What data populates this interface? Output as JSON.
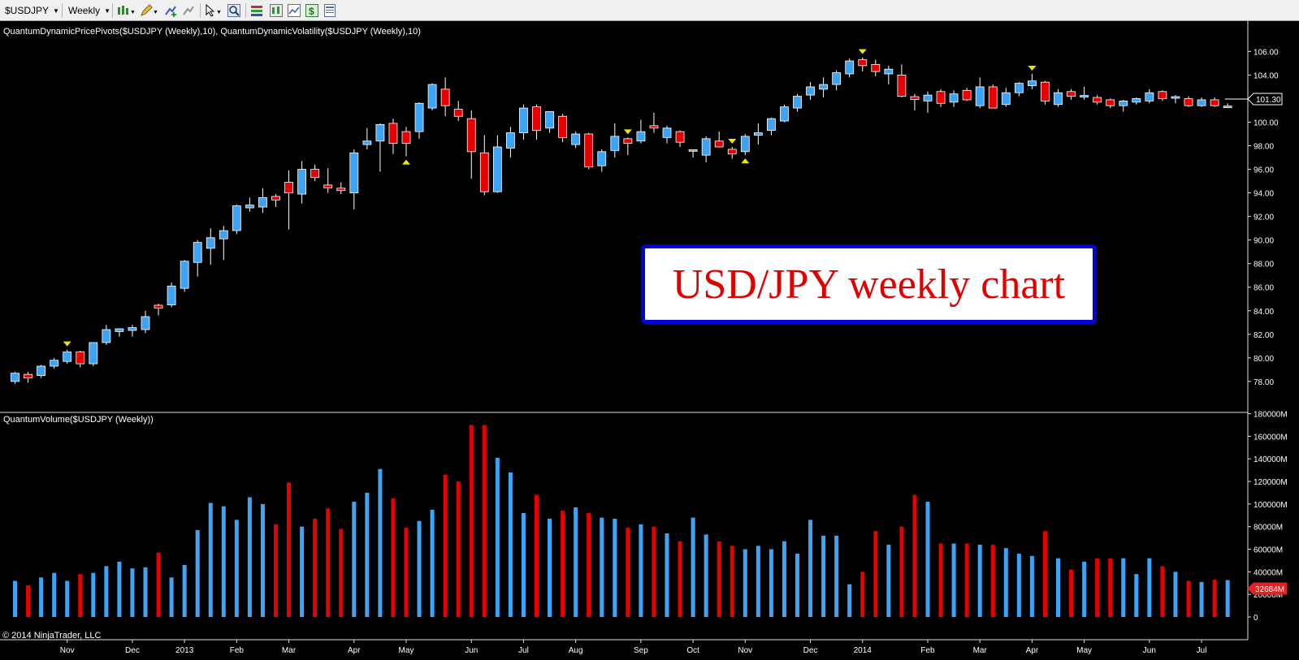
{
  "toolbar": {
    "instrument": "$USDJPY",
    "interval": "Weekly",
    "icons": [
      "bar-type-icon",
      "draw-pencil-icon",
      "add-indicator-icon",
      "remove-indicator-icon",
      "cursor-icon",
      "zoom-icon",
      "properties-icon",
      "strategy-icon",
      "chart-trader-icon",
      "money-icon",
      "data-box-icon"
    ]
  },
  "price_panel": {
    "label": "QuantumDynamicPricePivots($USDJPY (Weekly),10), QuantumDynamicVolatility($USDJPY (Weekly),10)",
    "last_price_tag": "101.30"
  },
  "volume_panel": {
    "label": "QuantumVolume($USDJPY (Weekly))",
    "last_volume_tag": "32684M"
  },
  "copyright": "© 2014 NinjaTrader, LLC",
  "overlay_title": "USD/JPY weekly chart",
  "colors": {
    "up": "#3da3f4",
    "down": "#e60000",
    "pivot": "#f2e600",
    "background": "#000000",
    "title_border": "#0000d8",
    "title_text": "#e00000"
  },
  "chart_data": [
    {
      "type": "candlestick",
      "title": "",
      "y_ticks": [
        "78.00",
        "80.00",
        "82.00",
        "84.00",
        "86.00",
        "88.00",
        "90.00",
        "92.00",
        "94.00",
        "96.00",
        "98.00",
        "100.00",
        "102.00",
        "104.00",
        "106.00"
      ],
      "ylim": [
        76.2,
        107.2
      ],
      "x_labels": [
        {
          "label": "Nov",
          "index": 4
        },
        {
          "label": "Dec",
          "index": 9
        },
        {
          "label": "2013",
          "index": 13
        },
        {
          "label": "Feb",
          "index": 17
        },
        {
          "label": "Mar",
          "index": 21
        },
        {
          "label": "Apr",
          "index": 26
        },
        {
          "label": "May",
          "index": 30
        },
        {
          "label": "Jun",
          "index": 35
        },
        {
          "label": "Jul",
          "index": 39
        },
        {
          "label": "Aug",
          "index": 43
        },
        {
          "label": "Sep",
          "index": 48
        },
        {
          "label": "Oct",
          "index": 52
        },
        {
          "label": "Nov",
          "index": 56
        },
        {
          "label": "Dec",
          "index": 61
        },
        {
          "label": "2014",
          "index": 65
        },
        {
          "label": "Feb",
          "index": 70
        },
        {
          "label": "Mar",
          "index": 74
        },
        {
          "label": "Apr",
          "index": 78
        },
        {
          "label": "May",
          "index": 82
        },
        {
          "label": "Jun",
          "index": 87
        },
        {
          "label": "Jul",
          "index": 91
        }
      ],
      "candles": [
        {
          "o": 78.0,
          "h": 78.8,
          "l": 77.8,
          "c": 78.7
        },
        {
          "o": 78.6,
          "h": 78.8,
          "l": 77.9,
          "c": 78.3
        },
        {
          "o": 78.5,
          "h": 79.4,
          "l": 78.3,
          "c": 79.3
        },
        {
          "o": 79.3,
          "h": 80.0,
          "l": 79.1,
          "c": 79.8
        },
        {
          "o": 79.7,
          "h": 80.7,
          "l": 79.5,
          "c": 80.5
        },
        {
          "o": 80.5,
          "h": 80.6,
          "l": 79.2,
          "c": 79.5
        },
        {
          "o": 79.5,
          "h": 81.3,
          "l": 79.3,
          "c": 81.3
        },
        {
          "o": 81.3,
          "h": 82.8,
          "l": 81.1,
          "c": 82.4
        },
        {
          "o": 82.3,
          "h": 82.5,
          "l": 81.8,
          "c": 82.4
        },
        {
          "o": 82.4,
          "h": 82.8,
          "l": 81.8,
          "c": 82.5
        },
        {
          "o": 82.4,
          "h": 84.0,
          "l": 82.1,
          "c": 83.5
        },
        {
          "o": 84.4,
          "h": 84.6,
          "l": 83.6,
          "c": 84.3
        },
        {
          "o": 84.5,
          "h": 86.4,
          "l": 84.3,
          "c": 86.1
        },
        {
          "o": 85.9,
          "h": 88.3,
          "l": 85.6,
          "c": 88.2
        },
        {
          "o": 88.1,
          "h": 90.0,
          "l": 86.9,
          "c": 89.8
        },
        {
          "o": 89.3,
          "h": 91.0,
          "l": 87.9,
          "c": 90.2
        },
        {
          "o": 90.1,
          "h": 91.2,
          "l": 88.3,
          "c": 90.8
        },
        {
          "o": 90.8,
          "h": 93.0,
          "l": 90.5,
          "c": 92.9
        },
        {
          "o": 92.8,
          "h": 93.6,
          "l": 92.4,
          "c": 92.9
        },
        {
          "o": 92.8,
          "h": 94.4,
          "l": 92.3,
          "c": 93.6
        },
        {
          "o": 93.7,
          "h": 93.9,
          "l": 92.8,
          "c": 93.4
        },
        {
          "o": 94.9,
          "h": 95.9,
          "l": 90.9,
          "c": 94.0
        },
        {
          "o": 93.9,
          "h": 96.7,
          "l": 93.1,
          "c": 96.0
        },
        {
          "o": 96.0,
          "h": 96.4,
          "l": 95.0,
          "c": 95.3
        },
        {
          "o": 94.6,
          "h": 96.1,
          "l": 94.0,
          "c": 94.5
        },
        {
          "o": 94.4,
          "h": 94.9,
          "l": 93.9,
          "c": 94.2
        },
        {
          "o": 94.0,
          "h": 97.7,
          "l": 92.6,
          "c": 97.4
        },
        {
          "o": 98.1,
          "h": 99.5,
          "l": 97.7,
          "c": 98.4
        },
        {
          "o": 98.4,
          "h": 99.9,
          "l": 95.8,
          "c": 99.8
        },
        {
          "o": 99.9,
          "h": 100.3,
          "l": 97.3,
          "c": 98.2
        },
        {
          "o": 99.2,
          "h": 99.6,
          "l": 97.1,
          "c": 98.2
        },
        {
          "o": 99.2,
          "h": 101.7,
          "l": 98.6,
          "c": 101.6
        },
        {
          "o": 101.2,
          "h": 103.3,
          "l": 101.0,
          "c": 103.2
        },
        {
          "o": 102.8,
          "h": 103.8,
          "l": 100.5,
          "c": 101.4
        },
        {
          "o": 101.1,
          "h": 101.8,
          "l": 100.1,
          "c": 100.5
        },
        {
          "o": 100.3,
          "h": 101.0,
          "l": 95.2,
          "c": 97.5
        },
        {
          "o": 97.4,
          "h": 98.9,
          "l": 93.8,
          "c": 94.1
        },
        {
          "o": 94.1,
          "h": 98.9,
          "l": 94.0,
          "c": 97.9
        },
        {
          "o": 97.8,
          "h": 99.6,
          "l": 97.0,
          "c": 99.1
        },
        {
          "o": 99.1,
          "h": 101.5,
          "l": 98.5,
          "c": 101.2
        },
        {
          "o": 101.3,
          "h": 101.5,
          "l": 98.5,
          "c": 99.3
        },
        {
          "o": 99.5,
          "h": 100.8,
          "l": 99.1,
          "c": 100.9
        },
        {
          "o": 100.5,
          "h": 100.7,
          "l": 98.3,
          "c": 98.7
        },
        {
          "o": 98.1,
          "h": 99.2,
          "l": 97.8,
          "c": 99.0
        },
        {
          "o": 99.0,
          "h": 99.1,
          "l": 96.0,
          "c": 96.2
        },
        {
          "o": 96.3,
          "h": 97.7,
          "l": 95.8,
          "c": 97.5
        },
        {
          "o": 97.6,
          "h": 99.9,
          "l": 97.0,
          "c": 98.8
        },
        {
          "o": 98.6,
          "h": 98.7,
          "l": 97.2,
          "c": 98.2
        },
        {
          "o": 98.4,
          "h": 100.2,
          "l": 98.2,
          "c": 99.2
        },
        {
          "o": 99.7,
          "h": 100.8,
          "l": 99.1,
          "c": 99.5
        },
        {
          "o": 98.7,
          "h": 99.7,
          "l": 98.2,
          "c": 99.5
        },
        {
          "o": 99.2,
          "h": 99.3,
          "l": 97.9,
          "c": 98.3
        },
        {
          "o": 97.6,
          "h": 97.7,
          "l": 97.0,
          "c": 97.6
        },
        {
          "o": 97.2,
          "h": 98.8,
          "l": 96.6,
          "c": 98.6
        },
        {
          "o": 98.4,
          "h": 99.2,
          "l": 97.9,
          "c": 97.9
        },
        {
          "o": 97.7,
          "h": 97.9,
          "l": 96.9,
          "c": 97.3
        },
        {
          "o": 97.5,
          "h": 99.0,
          "l": 97.2,
          "c": 98.8
        },
        {
          "o": 98.9,
          "h": 99.9,
          "l": 98.1,
          "c": 99.1
        },
        {
          "o": 99.3,
          "h": 100.4,
          "l": 98.9,
          "c": 100.3
        },
        {
          "o": 100.1,
          "h": 101.5,
          "l": 100.0,
          "c": 101.3
        },
        {
          "o": 101.2,
          "h": 102.4,
          "l": 100.9,
          "c": 102.2
        },
        {
          "o": 102.3,
          "h": 103.4,
          "l": 101.9,
          "c": 103.0
        },
        {
          "o": 102.8,
          "h": 103.8,
          "l": 102.1,
          "c": 103.2
        },
        {
          "o": 103.2,
          "h": 104.4,
          "l": 102.7,
          "c": 104.2
        },
        {
          "o": 104.1,
          "h": 105.4,
          "l": 103.8,
          "c": 105.2
        },
        {
          "o": 105.3,
          "h": 105.5,
          "l": 104.3,
          "c": 104.8
        },
        {
          "o": 104.9,
          "h": 105.3,
          "l": 103.9,
          "c": 104.3
        },
        {
          "o": 104.1,
          "h": 104.8,
          "l": 103.2,
          "c": 104.5
        },
        {
          "o": 104.0,
          "h": 104.9,
          "l": 102.1,
          "c": 102.2
        },
        {
          "o": 102.1,
          "h": 102.4,
          "l": 101.0,
          "c": 102.0
        },
        {
          "o": 101.8,
          "h": 102.6,
          "l": 100.8,
          "c": 102.3
        },
        {
          "o": 102.6,
          "h": 102.8,
          "l": 101.3,
          "c": 101.6
        },
        {
          "o": 101.7,
          "h": 102.7,
          "l": 101.3,
          "c": 102.4
        },
        {
          "o": 102.7,
          "h": 102.9,
          "l": 101.8,
          "c": 101.9
        },
        {
          "o": 101.4,
          "h": 103.8,
          "l": 101.2,
          "c": 103.0
        },
        {
          "o": 103.0,
          "h": 103.2,
          "l": 101.2,
          "c": 101.2
        },
        {
          "o": 101.5,
          "h": 102.9,
          "l": 101.3,
          "c": 102.5
        },
        {
          "o": 102.5,
          "h": 103.4,
          "l": 102.2,
          "c": 103.3
        },
        {
          "o": 103.1,
          "h": 104.1,
          "l": 102.8,
          "c": 103.5
        },
        {
          "o": 103.4,
          "h": 103.5,
          "l": 101.5,
          "c": 101.8
        },
        {
          "o": 101.5,
          "h": 102.8,
          "l": 101.3,
          "c": 102.5
        },
        {
          "o": 102.6,
          "h": 102.8,
          "l": 101.9,
          "c": 102.2
        },
        {
          "o": 102.2,
          "h": 103.0,
          "l": 101.9,
          "c": 102.2
        },
        {
          "o": 102.1,
          "h": 102.3,
          "l": 101.5,
          "c": 101.7
        },
        {
          "o": 101.9,
          "h": 102.0,
          "l": 101.2,
          "c": 101.4
        },
        {
          "o": 101.4,
          "h": 101.9,
          "l": 100.9,
          "c": 101.8
        },
        {
          "o": 101.7,
          "h": 102.1,
          "l": 101.5,
          "c": 102.0
        },
        {
          "o": 101.8,
          "h": 102.8,
          "l": 101.6,
          "c": 102.5
        },
        {
          "o": 102.6,
          "h": 102.7,
          "l": 101.8,
          "c": 102.0
        },
        {
          "o": 102.1,
          "h": 102.3,
          "l": 101.6,
          "c": 102.1
        },
        {
          "o": 102.0,
          "h": 102.2,
          "l": 101.3,
          "c": 101.4
        },
        {
          "o": 101.4,
          "h": 102.1,
          "l": 101.3,
          "c": 101.9
        },
        {
          "o": 101.9,
          "h": 102.1,
          "l": 101.3,
          "c": 101.4
        },
        {
          "o": 101.3,
          "h": 101.6,
          "l": 101.2,
          "c": 101.3
        }
      ],
      "pivots": [
        {
          "index": 4,
          "type": "high"
        },
        {
          "index": 30,
          "type": "low"
        },
        {
          "index": 47,
          "type": "high"
        },
        {
          "index": 55,
          "type": "high"
        },
        {
          "index": 56,
          "type": "low"
        },
        {
          "index": 65,
          "type": "high"
        },
        {
          "index": 78,
          "type": "high"
        }
      ]
    },
    {
      "type": "bar",
      "title": "",
      "y_ticks": [
        "0",
        "20000M",
        "40000M",
        "60000M",
        "80000M",
        "100000M",
        "120000M",
        "140000M",
        "160000M",
        "180000M"
      ],
      "ylim": [
        0,
        184000
      ],
      "y_unit": "M",
      "values": [
        32000,
        28000,
        35000,
        39000,
        32000,
        38000,
        39000,
        45000,
        49000,
        43000,
        44000,
        57000,
        35000,
        46000,
        77000,
        101000,
        98000,
        86000,
        106000,
        100000,
        82000,
        119000,
        80000,
        87000,
        96000,
        78000,
        102000,
        110000,
        131000,
        105000,
        79000,
        85000,
        95000,
        126000,
        120000,
        170000,
        170000,
        141000,
        128000,
        92000,
        108000,
        87000,
        94000,
        97000,
        92000,
        88000,
        87000,
        79000,
        82000,
        80000,
        74000,
        67000,
        88000,
        73000,
        67000,
        63000,
        60000,
        63000,
        60000,
        67000,
        56000,
        86000,
        72000,
        72000,
        29000,
        40000,
        76000,
        64000,
        80000,
        108000,
        102000,
        65000,
        65000,
        65000,
        64000,
        64000,
        61000,
        56000,
        54000,
        76000,
        52000,
        42000,
        49000,
        52000,
        52000,
        52000,
        38000,
        52000,
        45000,
        40000,
        32000,
        31000,
        33000,
        32684
      ],
      "colors_by_candle": true
    }
  ]
}
